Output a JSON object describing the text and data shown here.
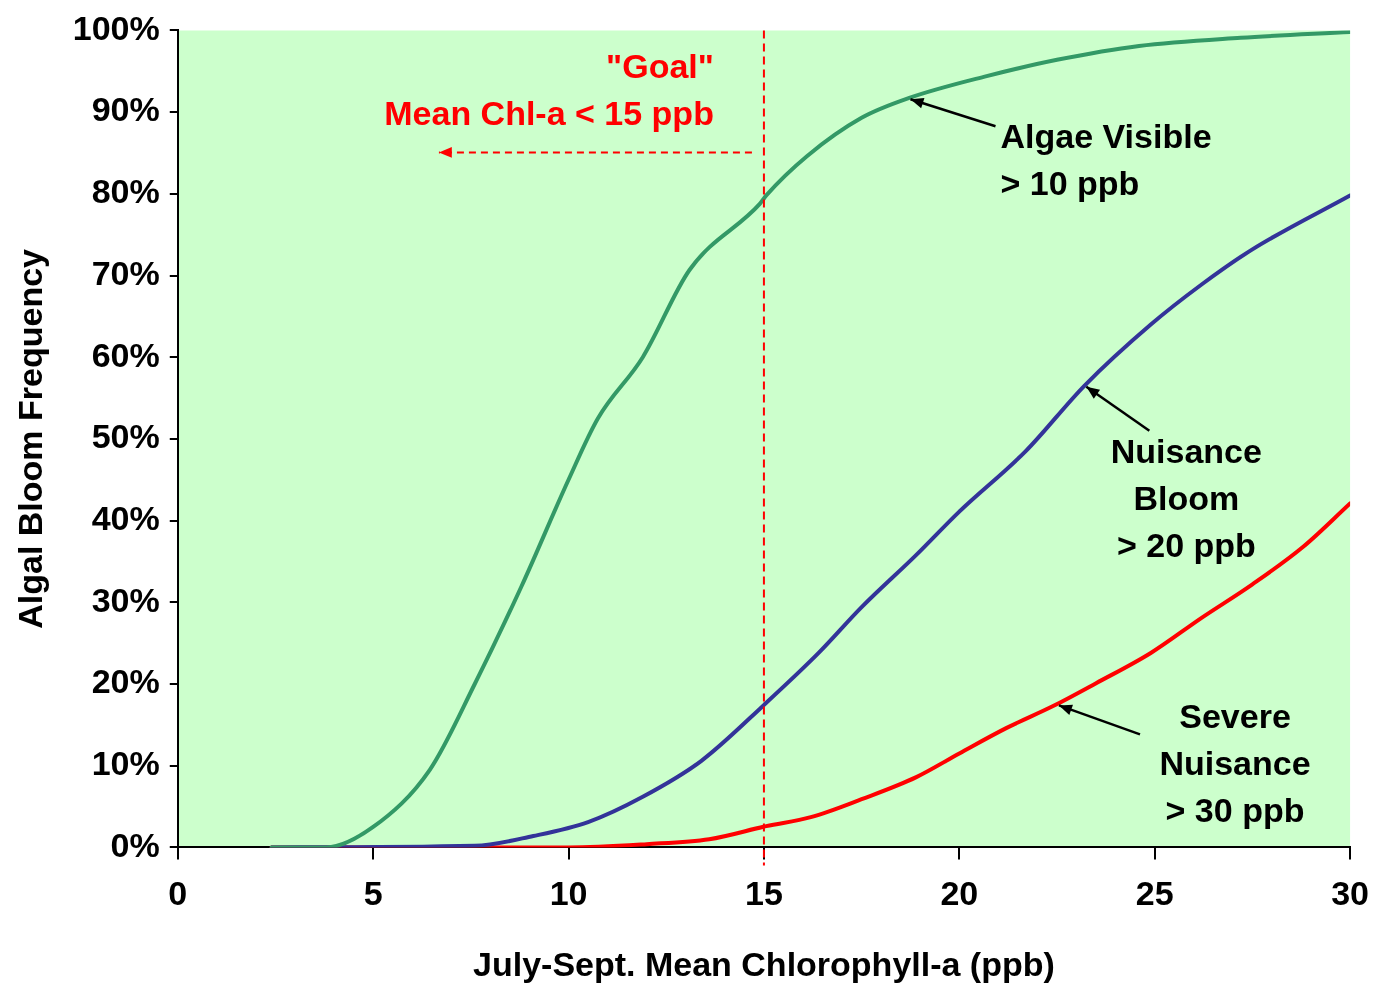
{
  "chart_data": {
    "type": "line",
    "xlabel": "July-Sept. Mean Chlorophyll-a (ppb)",
    "ylabel": "Algal Bloom Frequency",
    "xlim": [
      0,
      30
    ],
    "xticks": [
      0,
      5,
      10,
      15,
      20,
      25,
      30
    ],
    "ylim": [
      0,
      100
    ],
    "yticks": [
      {
        "value": 0,
        "label": "0%"
      },
      {
        "value": 10,
        "label": "10%"
      },
      {
        "value": 20,
        "label": "20%"
      },
      {
        "value": 30,
        "label": "30%"
      },
      {
        "value": 40,
        "label": "40%"
      },
      {
        "value": 50,
        "label": "50%"
      },
      {
        "value": 60,
        "label": "60%"
      },
      {
        "value": 70,
        "label": "70%"
      },
      {
        "value": 80,
        "label": "80%"
      },
      {
        "value": 90,
        "label": "90%"
      },
      {
        "value": 100,
        "label": "100%"
      }
    ],
    "grid": false,
    "legend": false,
    "marker": "none",
    "line_style": "solid",
    "series": [
      {
        "color": "#339966",
        "x": [
          2.4,
          3.8,
          5,
          6.45,
          7.6,
          8.8,
          10,
          10.75,
          11.9,
          13.1,
          14.9,
          15.06,
          16.1,
          17.5,
          18.7,
          20.7,
          22.5,
          24.6,
          27.2,
          30
        ],
        "values": [
          0,
          0,
          2.5,
          9.5,
          20,
          32,
          45,
          52.5,
          60,
          70.7,
          78.8,
          79.8,
          84.6,
          89.3,
          91.7,
          94.4,
          96.4,
          98.1,
          99.1,
          99.8
        ]
      },
      {
        "color": "#333399",
        "x": [
          2.4,
          7.6,
          9.1,
          10.5,
          11.9,
          13.4,
          15.06,
          16.4,
          17.5,
          18.9,
          20,
          21.7,
          23.2,
          24.9,
          26.2,
          27.5,
          30
        ],
        "values": [
          0,
          0.2,
          1.4,
          3.1,
          6.2,
          10.6,
          17.7,
          23.8,
          29.4,
          35.8,
          41.1,
          48.5,
          56.5,
          64,
          68.9,
          73.2,
          79.8
        ]
      },
      {
        "color": "#ff0000",
        "x": [
          2.4,
          10,
          12,
          13.6,
          15.06,
          16.2,
          17.5,
          18.9,
          20,
          21.2,
          22.4,
          23.5,
          24.9,
          26.2,
          27.5,
          28.8,
          30
        ],
        "values": [
          0,
          0,
          0.4,
          1,
          2.6,
          3.7,
          5.9,
          8.6,
          11.5,
          14.6,
          17.3,
          20.1,
          23.8,
          28.1,
          32.2,
          36.8,
          42.1
        ]
      }
    ],
    "ref_lines": [
      {
        "axis": "x",
        "value": 15,
        "label": "\"Goal\"\nMean Chl-a < 15 ppb",
        "color": "#ff0000",
        "line_style": "dashed"
      }
    ],
    "annotations": [
      {
        "text": "Algae Visible\n> 10 ppb",
        "x": 18.7,
        "y": 91.7
      },
      {
        "text": "Nuisance\nBloom\n> 20 ppb",
        "x": 23.2,
        "y": 56.5
      },
      {
        "text": "Severe\nNuisance\n> 30 ppb",
        "x": 22.5,
        "y": 17.5
      }
    ]
  }
}
